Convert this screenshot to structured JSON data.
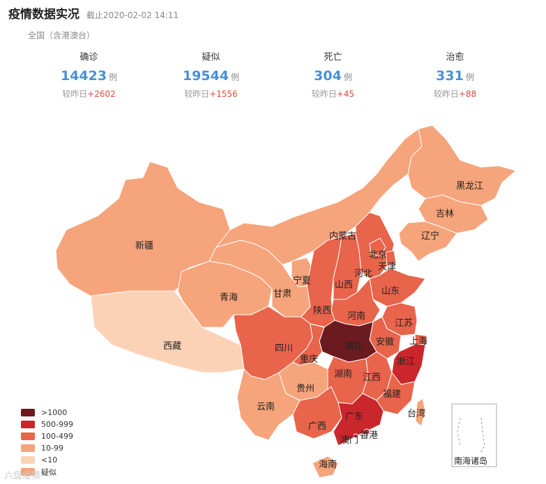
{
  "header": {
    "title": "疫情数据实况",
    "timestamp": "截止2020-02-02 14:11"
  },
  "scope": "全国（含港澳台）",
  "stats": [
    {
      "label": "确诊",
      "value": "14423",
      "unit": "例",
      "delta_label": "较昨日",
      "delta": "+2602"
    },
    {
      "label": "疑似",
      "value": "19544",
      "unit": "例",
      "delta_label": "较昨日",
      "delta": "+1556"
    },
    {
      "label": "死亡",
      "value": "304",
      "unit": "例",
      "delta_label": "较昨日",
      "delta": "+45"
    },
    {
      "label": "治愈",
      "value": "331",
      "unit": "例",
      "delta_label": "较昨日",
      "delta": "+88"
    }
  ],
  "colors": {
    "level_1000": "#6b1a1f",
    "level_500": "#c9272b",
    "level_100": "#e8644b",
    "level_10": "#f6a47b",
    "level_1": "#fcd2b6",
    "accent": "#4a8fd6",
    "delta": "#d94a3b"
  },
  "legend": [
    {
      "label": ">1000",
      "color": "#6b1a1f"
    },
    {
      "label": "500-999",
      "color": "#c9272b"
    },
    {
      "label": "100-499",
      "color": "#e8644b"
    },
    {
      "label": "10-99",
      "color": "#f6a47b"
    },
    {
      "label": "<10",
      "color": "#fcd2b6"
    },
    {
      "label": "疑似",
      "color": "#f6a47b"
    }
  ],
  "provinces": {
    "heilongjiang": "黑龙江",
    "jilin": "吉林",
    "liaoning": "辽宁",
    "neimenggu": "内蒙古",
    "xinjiang": "新疆",
    "xizang": "西藏",
    "qinghai": "青海",
    "gansu": "甘肃",
    "ningxia": "宁夏",
    "shaanxi": "陕西",
    "shanxi": "山西",
    "hebei": "河北",
    "beijing": "北京",
    "tianjin": "天津",
    "shandong": "山东",
    "henan": "河南",
    "jiangsu": "江苏",
    "anhui": "安徽",
    "shanghai": "上海",
    "zhejiang": "浙江",
    "hubei": "湖北",
    "sichuan": "四川",
    "chongqing": "重庆",
    "guizhou": "贵州",
    "yunnan": "云南",
    "hunan": "湖南",
    "jiangxi": "江西",
    "fujian": "福建",
    "guangxi": "广西",
    "guangdong": "广东",
    "taiwan": "台湾",
    "hongkong": "香港",
    "macau": "澳门",
    "hainan": "海南"
  },
  "inset_label": "南海诸岛",
  "watermark": "六盘疫情"
}
